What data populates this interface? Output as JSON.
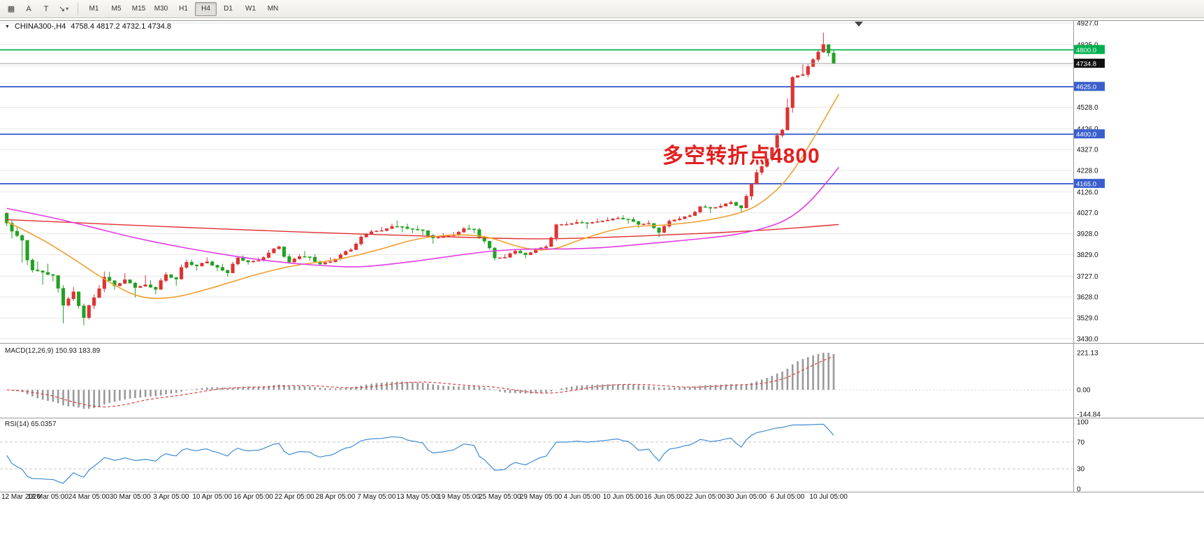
{
  "toolbar": {
    "tools": [
      {
        "name": "charts-grid-tool",
        "glyph": "▦"
      },
      {
        "name": "text-tool",
        "glyph": "A"
      },
      {
        "name": "label-tool",
        "glyph": "T"
      },
      {
        "name": "arrow-tools-dropdown",
        "glyph": "↘",
        "caret": "▾"
      }
    ],
    "timeframes": [
      "M1",
      "M5",
      "M15",
      "M30",
      "H1",
      "H4",
      "D1",
      "W1",
      "MN"
    ],
    "active_timeframe": "H4"
  },
  "header": {
    "collapse_glyph": "▼"
  },
  "colors": {
    "candle_up": "#dd3333",
    "candle_down": "#22a122",
    "ma_red": "#e03030",
    "ma_orange": "#f0a030",
    "ma_magenta": "#e23ce2",
    "level_green": "#00b050",
    "level_blue": "#3a5fcd",
    "price_line": "#a0a0a0",
    "current_badge": "#111111",
    "macd_bar": "#999999",
    "macd_signal": "#d84040",
    "rsi_line": "#3f8cd4",
    "grid": "#e7e7e7",
    "panel_border": "#9a9a9a",
    "annotation": "#e21f1f",
    "axis_text": "#111111"
  },
  "chart_data": [
    {
      "type": "candlestick",
      "title": "CHINA300-,H4",
      "ohlc_text": "4758.4 4817.2 4732.1 4734.8",
      "ohlc": {
        "open": 4758.4,
        "high": 4817.2,
        "low": 4732.1,
        "close": 4734.8
      },
      "ylim": [
        3430,
        4927
      ],
      "y_ticks": [
        4927,
        4825,
        4528,
        4426,
        4327,
        4228,
        4126,
        4027,
        3928,
        3829,
        3727,
        3628,
        3529,
        3430
      ],
      "y_grid_extra": [
        4724,
        4623
      ],
      "levels": [
        {
          "value": 4800,
          "label": "4800.0",
          "color_key": "level_green"
        },
        {
          "value": 4625,
          "label": "4625.0",
          "color_key": "level_blue"
        },
        {
          "value": 4400,
          "label": "4400.0",
          "color_key": "level_blue"
        },
        {
          "value": 4165,
          "label": "4165.0",
          "color_key": "level_blue"
        }
      ],
      "current_price": {
        "value": 4734.8,
        "label": "4734.8"
      },
      "annotation": {
        "text": "多空转折点4800"
      },
      "open_start": 4025,
      "daily_bars": [
        [
          3940,
          4030,
          3905
        ],
        [
          3897,
          3962,
          3791
        ],
        [
          3756,
          3878,
          3744
        ],
        [
          3745,
          3797,
          3686
        ],
        [
          3730,
          3786,
          3702
        ],
        [
          3589,
          3692,
          3503
        ],
        [
          3653,
          3676,
          3552
        ],
        [
          3530,
          3627,
          3494
        ],
        [
          3625,
          3641,
          3516
        ],
        [
          3722,
          3749,
          3651
        ],
        [
          3681,
          3747,
          3662
        ],
        [
          3710,
          3741,
          3671
        ],
        [
          3673,
          3706,
          3626
        ],
        [
          3686,
          3731,
          3656
        ],
        [
          3664,
          3707,
          3641
        ],
        [
          3734,
          3746,
          3662
        ],
        [
          3713,
          3736,
          3681
        ],
        [
          3793,
          3806,
          3741
        ],
        [
          3775,
          3806,
          3754
        ],
        [
          3795,
          3816,
          3761
        ],
        [
          3769,
          3801,
          3751
        ],
        [
          3742,
          3786,
          3724
        ],
        [
          3814,
          3821,
          3749
        ],
        [
          3794,
          3826,
          3781
        ],
        [
          3801,
          3816,
          3756
        ],
        [
          3837,
          3851,
          3796
        ],
        [
          3866,
          3872,
          3821
        ],
        [
          3794,
          3866,
          3786
        ],
        [
          3820,
          3831,
          3771
        ],
        [
          3817,
          3846,
          3801
        ],
        [
          3784,
          3831,
          3776
        ],
        [
          3795,
          3816,
          3771
        ],
        [
          3828,
          3836,
          3776
        ],
        [
          3852,
          3861,
          3801
        ],
        [
          3913,
          3921,
          3856
        ],
        [
          3938,
          3946,
          3881
        ],
        [
          3943,
          3961,
          3911
        ],
        [
          3963,
          3976,
          3931
        ],
        [
          3960,
          3991,
          3936
        ],
        [
          3949,
          3976,
          3931
        ],
        [
          3943,
          3966,
          3921
        ],
        [
          3908,
          3941,
          3881
        ],
        [
          3913,
          3931,
          3886
        ],
        [
          3922,
          3936,
          3881
        ],
        [
          3952,
          3961,
          3916
        ],
        [
          3948,
          3971,
          3931
        ],
        [
          3893,
          3956,
          3881
        ],
        [
          3813,
          3871,
          3801
        ],
        [
          3816,
          3831,
          3781
        ],
        [
          3846,
          3856,
          3806
        ],
        [
          3828,
          3856,
          3811
        ],
        [
          3850,
          3861,
          3816
        ],
        [
          3867,
          3876,
          3831
        ],
        [
          3971,
          3976,
          3881
        ],
        [
          3972,
          3986,
          3936
        ],
        [
          3982,
          3996,
          3956
        ],
        [
          3978,
          3991,
          3951
        ],
        [
          3985,
          4001,
          3961
        ],
        [
          3993,
          4006,
          3966
        ],
        [
          4002,
          4011,
          3971
        ],
        [
          3996,
          4016,
          3976
        ],
        [
          3972,
          4006,
          3956
        ],
        [
          3977,
          3991,
          3941
        ],
        [
          3934,
          3976,
          3911
        ],
        [
          3988,
          3996,
          3931
        ],
        [
          3999,
          4011,
          3966
        ],
        [
          4014,
          4021,
          3981
        ],
        [
          4056,
          4061,
          4016
        ],
        [
          4049,
          4066,
          4026
        ],
        [
          4059,
          4071,
          4021
        ],
        [
          4077,
          4086,
          4046
        ],
        [
          4050,
          4081,
          4031
        ],
        [
          4163,
          4166,
          4051
        ],
        [
          4247,
          4251,
          4161
        ],
        [
          4336,
          4341,
          4241
        ],
        [
          4420,
          4426,
          4331
        ],
        [
          4670,
          4676,
          4441
        ],
        [
          4683,
          4731,
          4611
        ],
        [
          4754,
          4761,
          4646
        ],
        [
          4825,
          4882,
          4731
        ],
        [
          4734.8,
          4817.2,
          4732.1
        ]
      ],
      "x_labels": [
        [
          0,
          "12 Mar 2020"
        ],
        [
          4,
          "18 Mar 05:00"
        ],
        [
          8,
          "24 Mar 05:00"
        ],
        [
          12,
          "30 Mar 05:00"
        ],
        [
          16,
          "3 Apr 05:00"
        ],
        [
          20,
          "10 Apr 05:00"
        ],
        [
          24,
          "16 Apr 05:00"
        ],
        [
          28,
          "22 Apr 05:00"
        ],
        [
          32,
          "28 Apr 05:00"
        ],
        [
          36,
          "7 May 05:00"
        ],
        [
          40,
          "13 May 05:00"
        ],
        [
          44,
          "19 May 05:00"
        ],
        [
          48,
          "25 May 05:00"
        ],
        [
          52,
          "29 May 05:00"
        ],
        [
          56,
          "4 Jun 05:00"
        ],
        [
          60,
          "10 Jun 05:00"
        ],
        [
          64,
          "16 Jun 05:00"
        ],
        [
          68,
          "22 Jun 05:00"
        ],
        [
          72,
          "30 Jun 05:00"
        ],
        [
          76,
          "6 Jul 05:00"
        ],
        [
          80,
          "10 Jul 05:00"
        ]
      ],
      "moving_averages": [
        {
          "name": "ma-slow-red",
          "color_key": "ma_red",
          "points": [
            [
              0,
              3995
            ],
            [
              8,
              3978
            ],
            [
              16,
              3960
            ],
            [
              24,
              3945
            ],
            [
              32,
              3930
            ],
            [
              40,
              3918
            ],
            [
              48,
              3906
            ],
            [
              52,
              3903
            ],
            [
              56,
              3907
            ],
            [
              60,
              3914
            ],
            [
              64,
              3922
            ],
            [
              68,
              3930
            ],
            [
              72,
              3940
            ],
            [
              76,
              3952
            ],
            [
              80,
              3968
            ],
            [
              81,
              3972
            ]
          ]
        },
        {
          "name": "ma-fast-orange",
          "color_key": "ma_orange",
          "points": [
            [
              0,
              3985
            ],
            [
              3,
              3915
            ],
            [
              6,
              3825
            ],
            [
              10,
              3695
            ],
            [
              13,
              3622
            ],
            [
              16,
              3620
            ],
            [
              20,
              3670
            ],
            [
              24,
              3732
            ],
            [
              28,
              3780
            ],
            [
              32,
              3802
            ],
            [
              36,
              3848
            ],
            [
              40,
              3908
            ],
            [
              44,
              3926
            ],
            [
              47,
              3914
            ],
            [
              50,
              3860
            ],
            [
              53,
              3846
            ],
            [
              56,
              3904
            ],
            [
              60,
              3962
            ],
            [
              64,
              3968
            ],
            [
              68,
              3988
            ],
            [
              72,
              4032
            ],
            [
              74,
              4092
            ],
            [
              76,
              4185
            ],
            [
              78,
              4335
            ],
            [
              80,
              4505
            ],
            [
              81,
              4590
            ]
          ]
        },
        {
          "name": "ma-mid-magenta",
          "color_key": "ma_magenta",
          "points": [
            [
              0,
              4048
            ],
            [
              4,
              4010
            ],
            [
              8,
              3963
            ],
            [
              12,
              3913
            ],
            [
              16,
              3873
            ],
            [
              20,
              3838
            ],
            [
              24,
              3808
            ],
            [
              28,
              3786
            ],
            [
              32,
              3773
            ],
            [
              34,
              3770
            ],
            [
              36,
              3776
            ],
            [
              40,
              3799
            ],
            [
              44,
              3827
            ],
            [
              48,
              3851
            ],
            [
              52,
              3857
            ],
            [
              54,
              3855
            ],
            [
              58,
              3861
            ],
            [
              62,
              3879
            ],
            [
              66,
              3897
            ],
            [
              70,
              3917
            ],
            [
              72,
              3934
            ],
            [
              74,
              3957
            ],
            [
              76,
              3994
            ],
            [
              78,
              4068
            ],
            [
              80,
              4182
            ],
            [
              81,
              4243
            ]
          ]
        }
      ]
    },
    {
      "type": "bar",
      "name": "MACD",
      "label": "MACD(12,26,9) 150.93 183.89",
      "params": [
        12,
        26,
        9
      ],
      "current": {
        "macd": 150.93,
        "signal": 183.89
      },
      "ylim": [
        -144.84,
        221.13
      ],
      "ticks": [
        221.13,
        0,
        -144.84
      ],
      "tick_labels": [
        "221.13",
        "0.00",
        "-144.84"
      ]
    },
    {
      "type": "line",
      "name": "RSI",
      "label": "RSI(14) 65.0357",
      "period": 14,
      "current": 65.0357,
      "ylim": [
        0,
        100
      ],
      "ticks": [
        100,
        70,
        30,
        0
      ],
      "tick_labels": [
        "100",
        "70",
        "30",
        "0"
      ],
      "levels": [
        70,
        30
      ]
    }
  ]
}
